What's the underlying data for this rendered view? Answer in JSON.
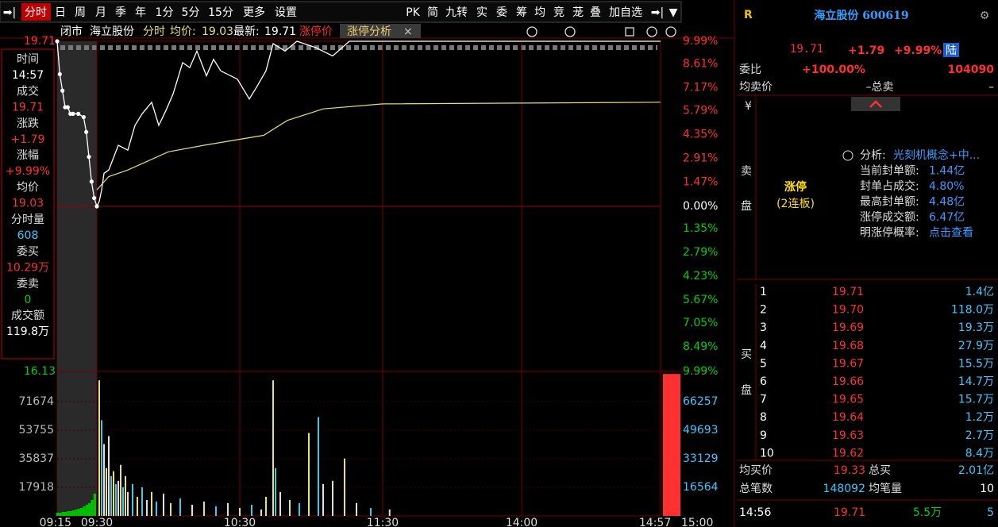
{
  "toolbar": {
    "left": [
      "分时",
      "日",
      "周",
      "月",
      "季",
      "年",
      "1分",
      "5分",
      "15分",
      "更多",
      "设置"
    ],
    "right": [
      "PK",
      "简",
      "九转",
      "实",
      "委",
      "筹",
      "均",
      "竞",
      "茏",
      "叠",
      "加自选"
    ]
  },
  "chart_header": {
    "status": "闭市",
    "name": "海立股份",
    "mode": "分时",
    "avg_label": "均价:",
    "avg_value": "19.03",
    "last_label": "最新:",
    "last_value": "19.71",
    "limit_label": "涨停价",
    "tab": "涨停分析",
    "tab_close": "×"
  },
  "info_panel": [
    {
      "label": "时间",
      "value": "14:57"
    },
    {
      "label": "成交",
      "value": "19.71"
    },
    {
      "label": "涨跌",
      "value": "+1.79"
    },
    {
      "label": "涨幅",
      "value": "+9.99%"
    },
    {
      "label": "均价",
      "value": "19.03"
    },
    {
      "label": "分时量",
      "value": "608"
    },
    {
      "label": "委买",
      "value": "10.29万"
    },
    {
      "label": "委卖",
      "value": "0"
    },
    {
      "label": "成交额",
      "value": "119.8万"
    }
  ],
  "price_chart": {
    "type": "line",
    "x": [
      0,
      1,
      2,
      3,
      4,
      5,
      6,
      8,
      10,
      11,
      12,
      13,
      14,
      15,
      16,
      17,
      18,
      20,
      24,
      28,
      31,
      34,
      38,
      41,
      44,
      47,
      51,
      54,
      57,
      61,
      64,
      67,
      74,
      79,
      82,
      86,
      89,
      94,
      99,
      107,
      114,
      121,
      135,
      255
    ],
    "values": [
      9.99,
      8.0,
      7.0,
      6.0,
      6.0,
      5.6,
      5.6,
      5.6,
      5.4,
      4.5,
      3.0,
      1.5,
      0.5,
      0.0,
      0.3,
      1.0,
      2.0,
      2.2,
      3.7,
      3.4,
      4.9,
      5.6,
      6.3,
      4.9,
      5.8,
      6.8,
      8.7,
      8.4,
      9.4,
      7.9,
      8.9,
      8.2,
      7.7,
      6.5,
      7.2,
      8.2,
      9.85,
      9.4,
      9.99,
      9.6,
      9.1,
      9.99,
      9.99,
      9.99
    ],
    "avg_x": [
      15,
      20,
      28,
      45,
      60,
      85,
      95,
      110,
      135,
      255
    ],
    "avg_values": [
      1.0,
      1.8,
      2.2,
      3.3,
      3.7,
      4.3,
      5.2,
      5.9,
      6.2,
      6.3
    ],
    "color": "#ffffff",
    "avg_color": "#e8e070",
    "xlim": [
      0,
      255
    ],
    "xticks": [
      {
        "value": 0,
        "label": "09:15"
      },
      {
        "value": 15,
        "label": "09:30"
      },
      {
        "value": 75,
        "label": "10:30"
      },
      {
        "value": 135,
        "label": "11:30"
      },
      {
        "value": 195,
        "label": "14:00"
      },
      {
        "value": 252,
        "label": "14:57"
      },
      {
        "value": 255,
        "label": "15:00"
      }
    ],
    "ylim": [
      -9.99,
      9.99
    ],
    "yticks": [
      {
        "value": 9.99,
        "label": "9.99%"
      },
      {
        "value": 8.61,
        "label": "8.61%"
      },
      {
        "value": 7.17,
        "label": "7.17%"
      },
      {
        "value": 5.79,
        "label": "5.79%"
      },
      {
        "value": 4.35,
        "label": "4.35%"
      },
      {
        "value": 2.91,
        "label": "2.91%"
      },
      {
        "value": 1.47,
        "label": "1.47%"
      },
      {
        "value": 0,
        "label": "0.00%"
      },
      {
        "value": -1.35,
        "label": "1.35%"
      },
      {
        "value": -2.79,
        "label": "2.79%"
      },
      {
        "value": -4.23,
        "label": "4.23%"
      },
      {
        "value": -5.67,
        "label": "5.67%"
      },
      {
        "value": -7.05,
        "label": "7.05%"
      },
      {
        "value": -8.49,
        "label": "8.49%"
      },
      {
        "value": -9.99,
        "label": "9.99%"
      }
    ],
    "price_ticks": [
      {
        "value": 9.99,
        "label": "19.71"
      },
      {
        "value": -9.99,
        "label": "16.13"
      }
    ]
  },
  "volume_chart": {
    "type": "bar",
    "x": [
      0,
      1,
      2,
      3,
      4,
      5,
      6,
      7,
      8,
      9,
      10,
      11,
      12,
      13,
      14,
      16,
      17,
      18,
      19,
      20,
      21,
      22,
      23,
      24,
      25,
      26,
      27,
      28,
      30,
      32,
      34,
      36,
      38,
      40,
      43,
      46,
      50,
      55,
      60,
      65,
      70,
      75,
      80,
      84,
      86,
      89,
      90,
      92,
      96,
      100,
      104,
      108,
      110,
      114,
      119,
      124,
      130,
      138
    ],
    "values": [
      2000,
      2000,
      2500,
      2500,
      3000,
      3000,
      3500,
      4000,
      4500,
      5000,
      6000,
      7000,
      8000,
      10000,
      14000,
      85000,
      60000,
      45000,
      30000,
      50000,
      25000,
      28000,
      20000,
      22000,
      32000,
      18000,
      25000,
      15000,
      20000,
      12000,
      18000,
      10000,
      15000,
      9000,
      14000,
      8000,
      11000,
      7000,
      9000,
      6000,
      8000,
      5000,
      7000,
      4000,
      12000,
      85000,
      30000,
      15000,
      10000,
      8000,
      52000,
      62000,
      20000,
      22000,
      36000,
      8000,
      5000,
      4000
    ],
    "colors": [
      "#00c000",
      "#00c000",
      "#00c000",
      "#00c000",
      "#00c000",
      "#00c000",
      "#00c000",
      "#00c000",
      "#00c000",
      "#00c000",
      "#00c000",
      "#00c000",
      "#00c000",
      "#00c000",
      "#00c000",
      "#e8e070",
      "#40c8e8",
      "#e0e0e0",
      "#e8e070",
      "#e0e0e0",
      "#40c8e8",
      "#e8e070",
      "#40c8e8",
      "#e0e0e0",
      "#e8e070",
      "#40c8e8",
      "#e8e070",
      "#e0e0e0",
      "#40c8e8",
      "#e8e070",
      "#40c8e8",
      "#e0e0e0",
      "#e8e070",
      "#40c8e8",
      "#e0e0e0",
      "#e8e070",
      "#40c8e8",
      "#e0e0e0",
      "#e8e070",
      "#40c8e8",
      "#e0e0e0",
      "#e8e070",
      "#40c8e8",
      "#e0e0e0",
      "#e8e070",
      "#e8e070",
      "#40c8e8",
      "#e0e0e0",
      "#e8e070",
      "#40c8e8",
      "#e8e070",
      "#40c8e8",
      "#e0e0e0",
      "#e0e0e0",
      "#e8e070",
      "#e0e0e0",
      "#40c8e8",
      "#e0e0e0"
    ],
    "closing_bar": 89000,
    "closing_color": "#ff3030",
    "ylim": [
      0,
      90584
    ],
    "yticks": [
      17918,
      35837,
      53755,
      71674
    ],
    "y2lim": [
      0,
      83742
    ],
    "y2ticks": [
      16564,
      33129,
      49693,
      66257
    ]
  },
  "quote": {
    "badge": "R",
    "title": "海立股份 600619",
    "price": "19.71",
    "change": "+1.79",
    "change_pct": "+9.99%",
    "market": "陆",
    "ratio_label": "委比",
    "ratio": "+100.00%",
    "ratio_volume": "104090",
    "ask_avg_label": "均卖价",
    "ask_total_label": "–总卖",
    "ask_total": "–",
    "currency": "¥",
    "ask_side": [
      "卖",
      "盘"
    ],
    "limit_up": "涨停",
    "streak": "(2连板)",
    "analysis": [
      {
        "label": "分析:",
        "value": "光刻机概念+中..."
      },
      {
        "label": "当前封单额:",
        "value": "1.44亿"
      },
      {
        "label": "封单占成交:",
        "value": "4.80%"
      },
      {
        "label": "最高封单额:",
        "value": "4.48亿"
      },
      {
        "label": "涨停成交额:",
        "value": "6.47亿"
      },
      {
        "label": "明涨停概率:",
        "value": "点击查看"
      }
    ],
    "bid_side": [
      "买",
      "盘"
    ],
    "bids": [
      {
        "level": "1",
        "price": "19.71",
        "volume": "1.4亿"
      },
      {
        "level": "2",
        "price": "19.70",
        "volume": "118.0万"
      },
      {
        "level": "3",
        "price": "19.69",
        "volume": "19.3万"
      },
      {
        "level": "4",
        "price": "19.68",
        "volume": "27.9万"
      },
      {
        "level": "5",
        "price": "19.67",
        "volume": "15.5万"
      },
      {
        "level": "6",
        "price": "19.66",
        "volume": "14.7万"
      },
      {
        "level": "7",
        "price": "19.65",
        "volume": "15.7万"
      },
      {
        "level": "8",
        "price": "19.64",
        "volume": "1.2万"
      },
      {
        "level": "9",
        "price": "19.63",
        "volume": "2.7万"
      },
      {
        "level": "10",
        "price": "19.62",
        "volume": "8.4万"
      }
    ],
    "bid_avg_label": "均买价",
    "bid_avg": "19.33",
    "bid_total_label": "总买",
    "bid_total": "2.01亿",
    "trades_label": "总笔数",
    "trades": "148092",
    "avg_trade_label": "均笔量",
    "avg_trade": "10",
    "last_tick": {
      "time": "14:56",
      "price": "19.71",
      "volume": "5.5万",
      "count": "5"
    }
  }
}
